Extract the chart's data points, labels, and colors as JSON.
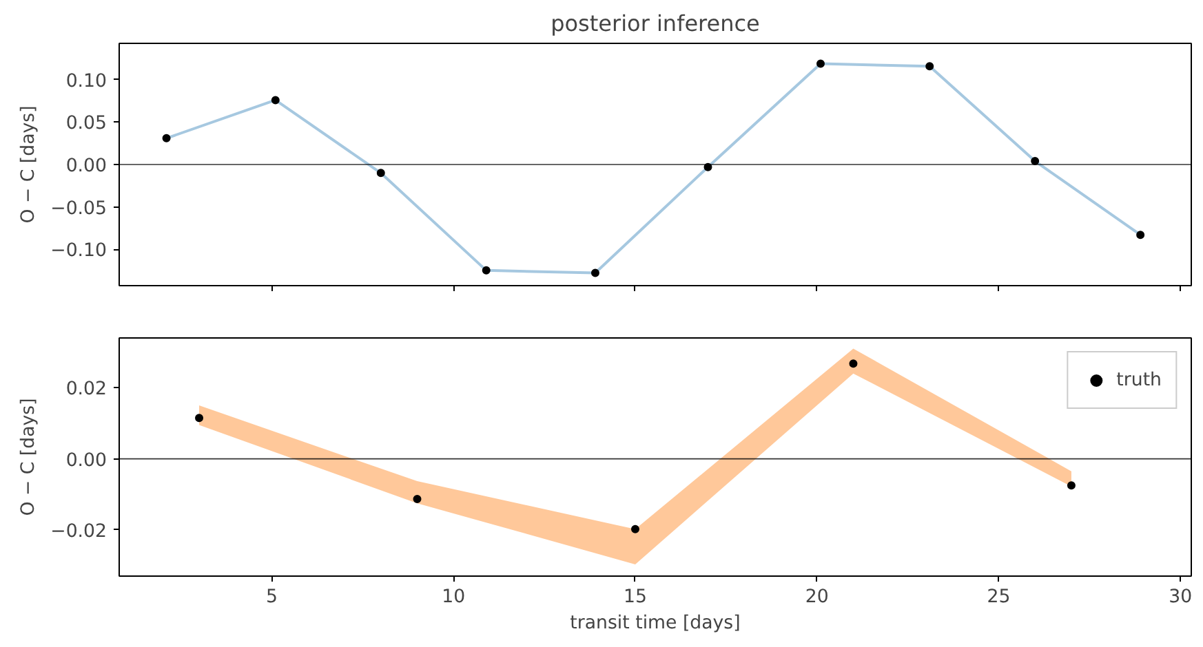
{
  "chart_data": [
    {
      "type": "line",
      "title": "posterior inference",
      "ylabel": "O − C [days]",
      "xlim": [
        0.8,
        30.3
      ],
      "ylim": [
        -0.143,
        0.143
      ],
      "xticks": [
        5,
        10,
        15,
        20,
        25,
        30
      ],
      "yticks": [
        {
          "value": -0.1,
          "label": "−0.10"
        },
        {
          "value": -0.05,
          "label": "−0.05"
        },
        {
          "value": 0,
          "label": "0.00"
        },
        {
          "value": 0.05,
          "label": "0.05"
        },
        {
          "value": 0.1,
          "label": "0.10"
        }
      ],
      "tick_labels": "y",
      "grid": false,
      "x": [
        2.1,
        5.1,
        8.0,
        10.9,
        13.9,
        17.0,
        20.1,
        23.1,
        26.0,
        28.9
      ],
      "ref_lines": [
        {
          "axis": "y",
          "value": 0,
          "color": "#000000"
        }
      ],
      "series": [
        {
          "color": "#a6c8e0",
          "values": [
            0.031,
            0.076,
            -0.01,
            -0.125,
            -0.128,
            -0.003,
            0.119,
            0.116,
            0.004,
            -0.083
          ]
        },
        {
          "type": "scatter",
          "marker": "circle",
          "color": "#000000",
          "values": [
            0.031,
            0.076,
            -0.01,
            -0.125,
            -0.128,
            -0.003,
            0.119,
            0.116,
            0.004,
            -0.083
          ]
        }
      ]
    },
    {
      "type": "line",
      "xlabel": "transit time [days]",
      "ylabel": "O − C [days]",
      "xlim": [
        0.8,
        30.3
      ],
      "ylim": [
        -0.033,
        0.034
      ],
      "xticks": [
        5,
        10,
        15,
        20,
        25,
        30
      ],
      "yticks": [
        {
          "value": -0.02,
          "label": "−0.02"
        },
        {
          "value": 0,
          "label": "0.00"
        },
        {
          "value": 0.02,
          "label": "0.02"
        }
      ],
      "grid": false,
      "legend": "top right",
      "x": [
        3,
        9,
        15,
        21,
        27
      ],
      "ref_lines": [
        {
          "axis": "y",
          "value": 0,
          "color": "#000000"
        }
      ],
      "series": [
        {
          "color": "#ffc89a",
          "values": [
            null,
            null,
            null,
            null,
            null
          ],
          "lower": [
            0.0095,
            -0.0125,
            -0.0297,
            0.024,
            -0.0078
          ],
          "upper": [
            0.015,
            -0.0063,
            -0.0198,
            0.031,
            -0.0035
          ]
        },
        {
          "type": "scatter",
          "name": "truth",
          "marker": "circle",
          "color": "#000000",
          "values": [
            0.0115,
            -0.0113,
            -0.0198,
            0.0268,
            -0.0075
          ]
        }
      ]
    }
  ]
}
